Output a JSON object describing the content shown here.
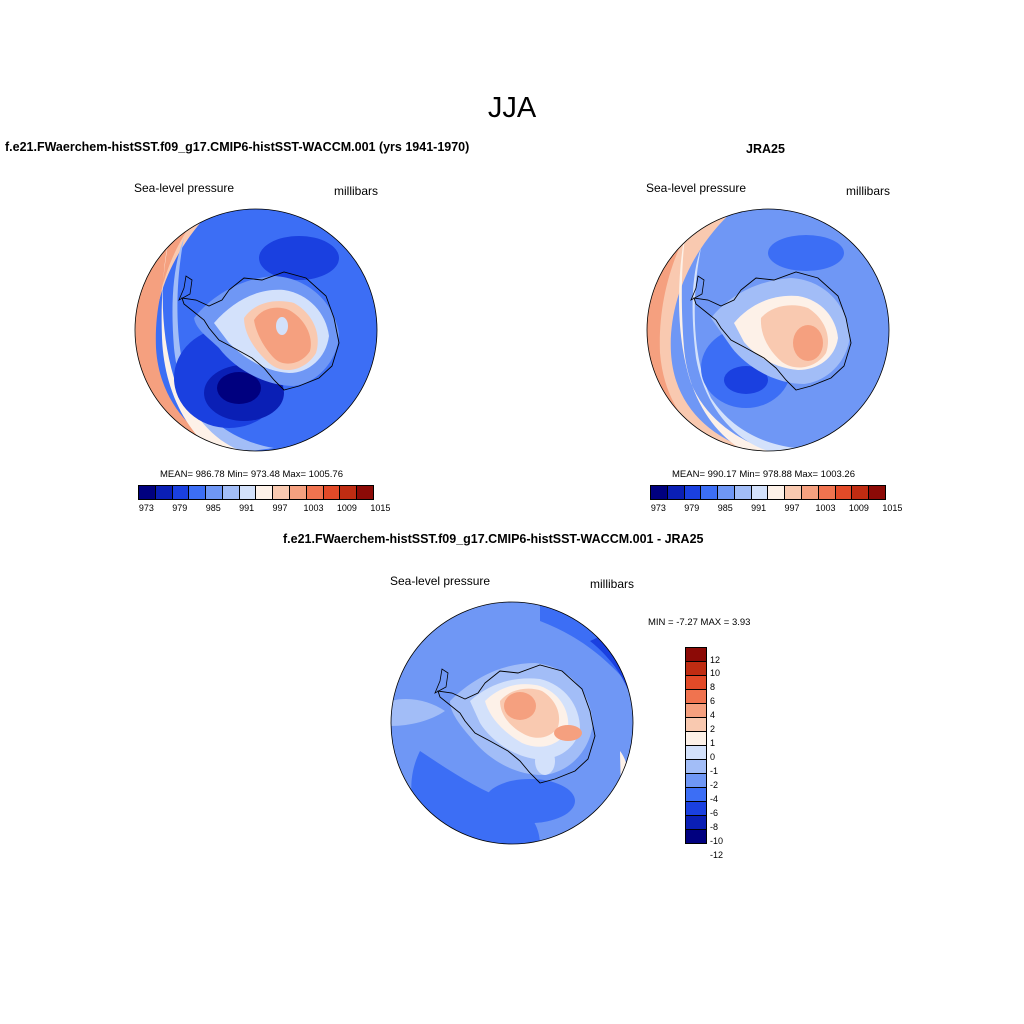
{
  "title": "JJA",
  "panels": [
    {
      "title": "f.e21.FWaerchem-histSST.f09_g17.CMIP6-histSST-WACCM.001 (yrs 1941-1970)",
      "field_label": "Sea-level pressure",
      "units": "millibars",
      "stats": "MEAN= 986.78  Min= 973.48  Max= 1005.76"
    },
    {
      "title": "JRA25",
      "field_label": "Sea-level pressure",
      "units": "millibars",
      "stats": "MEAN= 990.17  Min= 978.88  Max= 1003.26"
    },
    {
      "title": "f.e21.FWaerchem-histSST.f09_g17.CMIP6-histSST-WACCM.001 - JRA25",
      "field_label": "Sea-level pressure",
      "units": "millibars",
      "stats": "MIN =  -7.27 MAX =   3.93"
    }
  ],
  "abs_colorbar": {
    "colors": [
      "#00007f",
      "#0a1fb5",
      "#1a40e0",
      "#3c6ef5",
      "#6f97f5",
      "#a2bdf7",
      "#d3e1fb",
      "#fdf1e8",
      "#f9c9b0",
      "#f5a07f",
      "#f0734f",
      "#e24a28",
      "#bf2c12",
      "#8c0a06"
    ],
    "labels": [
      "973",
      "979",
      "985",
      "991",
      "997",
      "1003",
      "1009",
      "1015"
    ]
  },
  "diff_colorbar": {
    "colors": [
      "#8c0a06",
      "#bf2c12",
      "#e24a28",
      "#f0734f",
      "#f5a07f",
      "#f9c9b0",
      "#fdf1e8",
      "#d3e1fb",
      "#a2bdf7",
      "#6f97f5",
      "#3c6ef5",
      "#1a40e0",
      "#0a1fb5",
      "#00007f"
    ],
    "labels": [
      "12",
      "10",
      "8",
      "6",
      "4",
      "2",
      "1",
      "0",
      "-1",
      "-2",
      "-4",
      "-6",
      "-8",
      "-10",
      "-12"
    ]
  }
}
